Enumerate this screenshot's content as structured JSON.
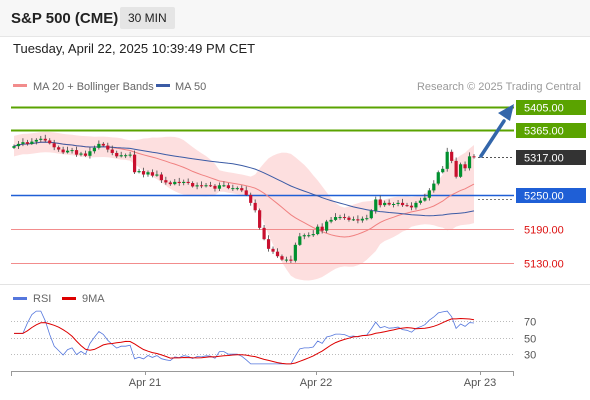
{
  "header": {
    "title": "S&P 500 (CME)",
    "timeframe": "30 MIN"
  },
  "datetime": "Tuesday, April 22, 2025 10:39:49 PM CET",
  "legend": {
    "ma20": "MA 20 + Bollinger Bands",
    "ma50": "MA 50",
    "credit": "Research © 2025 Trading Central"
  },
  "colors": {
    "candle_up": "#00902f",
    "candle_down": "#c8102e",
    "bollinger_fill": "#fcd4d4",
    "ma20": "#f08080",
    "ma50": "#3b5ba5",
    "resistance": "#5aa300",
    "pivot": "#1f5fd6",
    "support": "#f28c8c",
    "last_price_box": "#333333",
    "arrow": "#3366aa",
    "rsi": "#5577dd",
    "rsi_ma": "#dd0000"
  },
  "levels": [
    {
      "value": "5405.00",
      "type": "resistance"
    },
    {
      "value": "5365.00",
      "type": "resistance"
    },
    {
      "value": "5317.00",
      "type": "last"
    },
    {
      "value": "5250.00",
      "type": "pivot"
    },
    {
      "value": "5190.00",
      "type": "support"
    },
    {
      "value": "5130.00",
      "type": "support"
    }
  ],
  "chart_data": {
    "type": "candlestick",
    "x_ticks": [
      "Apr 21",
      "Apr 22",
      "Apr 23"
    ],
    "ylim": [
      5105,
      5425
    ],
    "closes": [
      5336,
      5340,
      5343,
      5340,
      5344,
      5347,
      5349,
      5346,
      5341,
      5334,
      5330,
      5325,
      5328,
      5329,
      5321,
      5323,
      5319,
      5327,
      5333,
      5340,
      5337,
      5330,
      5324,
      5318,
      5320,
      5320,
      5321,
      5290,
      5292,
      5286,
      5290,
      5284,
      5286,
      5276,
      5272,
      5269,
      5273,
      5271,
      5273,
      5271,
      5265,
      5267,
      5266,
      5267,
      5266,
      5261,
      5267,
      5267,
      5262,
      5262,
      5262,
      5258,
      5250,
      5236,
      5223,
      5192,
      5172,
      5155,
      5150,
      5142,
      5136,
      5136,
      5134,
      5162,
      5177,
      5179,
      5179,
      5181,
      5194,
      5187,
      5203,
      5206,
      5211,
      5211,
      5210,
      5206,
      5207,
      5205,
      5208,
      5209,
      5222,
      5242,
      5232,
      5236,
      5233,
      5234,
      5236,
      5232,
      5231,
      5228,
      5236,
      5240,
      5245,
      5258,
      5270,
      5290,
      5296,
      5326,
      5310,
      5282,
      5304,
      5297,
      5318,
      5317
    ],
    "ma20_last_values": {
      "start": 5320,
      "end": 5290
    },
    "rsi": {
      "ticks": [
        70,
        50,
        30
      ],
      "ylim": [
        15,
        85
      ]
    }
  }
}
